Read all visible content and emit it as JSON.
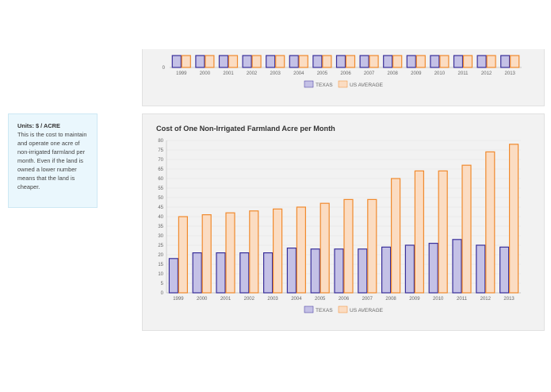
{
  "info": {
    "units_label": "Units: $ / ACRE",
    "description": "This is the cost to maintain and operate one acre of non-irrigated farmland per month. Even if the land is owned a lower number means that the land is cheaper."
  },
  "top_chart": {
    "years": [
      "1999",
      "2000",
      "2001",
      "2002",
      "2003",
      "2004",
      "2005",
      "2006",
      "2007",
      "2008",
      "2009",
      "2010",
      "2011",
      "2012",
      "2013"
    ],
    "y_zero_label": "0",
    "legend": [
      "TEXAS",
      "US AVERAGE"
    ]
  },
  "chart_data": {
    "type": "bar",
    "title": "Cost of One Non-Irrigated Farmland Acre per Month",
    "categories": [
      "1999",
      "2000",
      "2001",
      "2002",
      "2003",
      "2004",
      "2005",
      "2006",
      "2007",
      "2008",
      "2009",
      "2010",
      "2011",
      "2012",
      "2013"
    ],
    "series": [
      {
        "name": "TEXAS",
        "values": [
          18,
          21,
          21,
          21,
          21,
          23.5,
          23,
          23,
          23,
          24,
          25,
          26,
          28,
          25,
          24
        ]
      },
      {
        "name": "US AVERAGE",
        "values": [
          40,
          41,
          42,
          43,
          44,
          45,
          47,
          49,
          49,
          60,
          64,
          64,
          67,
          74,
          78
        ]
      }
    ],
    "yticks": [
      "0",
      "5",
      "10",
      "15",
      "20",
      "25",
      "30",
      "35",
      "40",
      "45",
      "50",
      "55",
      "60",
      "65",
      "70",
      "75",
      "80"
    ],
    "ylim": [
      0,
      80
    ],
    "xlabel": "",
    "ylabel": "",
    "legend_position": "bottom",
    "colors": {
      "texas_fill": "#c4c1e6",
      "texas_stroke": "#3a2f9a",
      "us_fill": "#fbdcc2",
      "us_stroke": "#f08a2e"
    }
  }
}
